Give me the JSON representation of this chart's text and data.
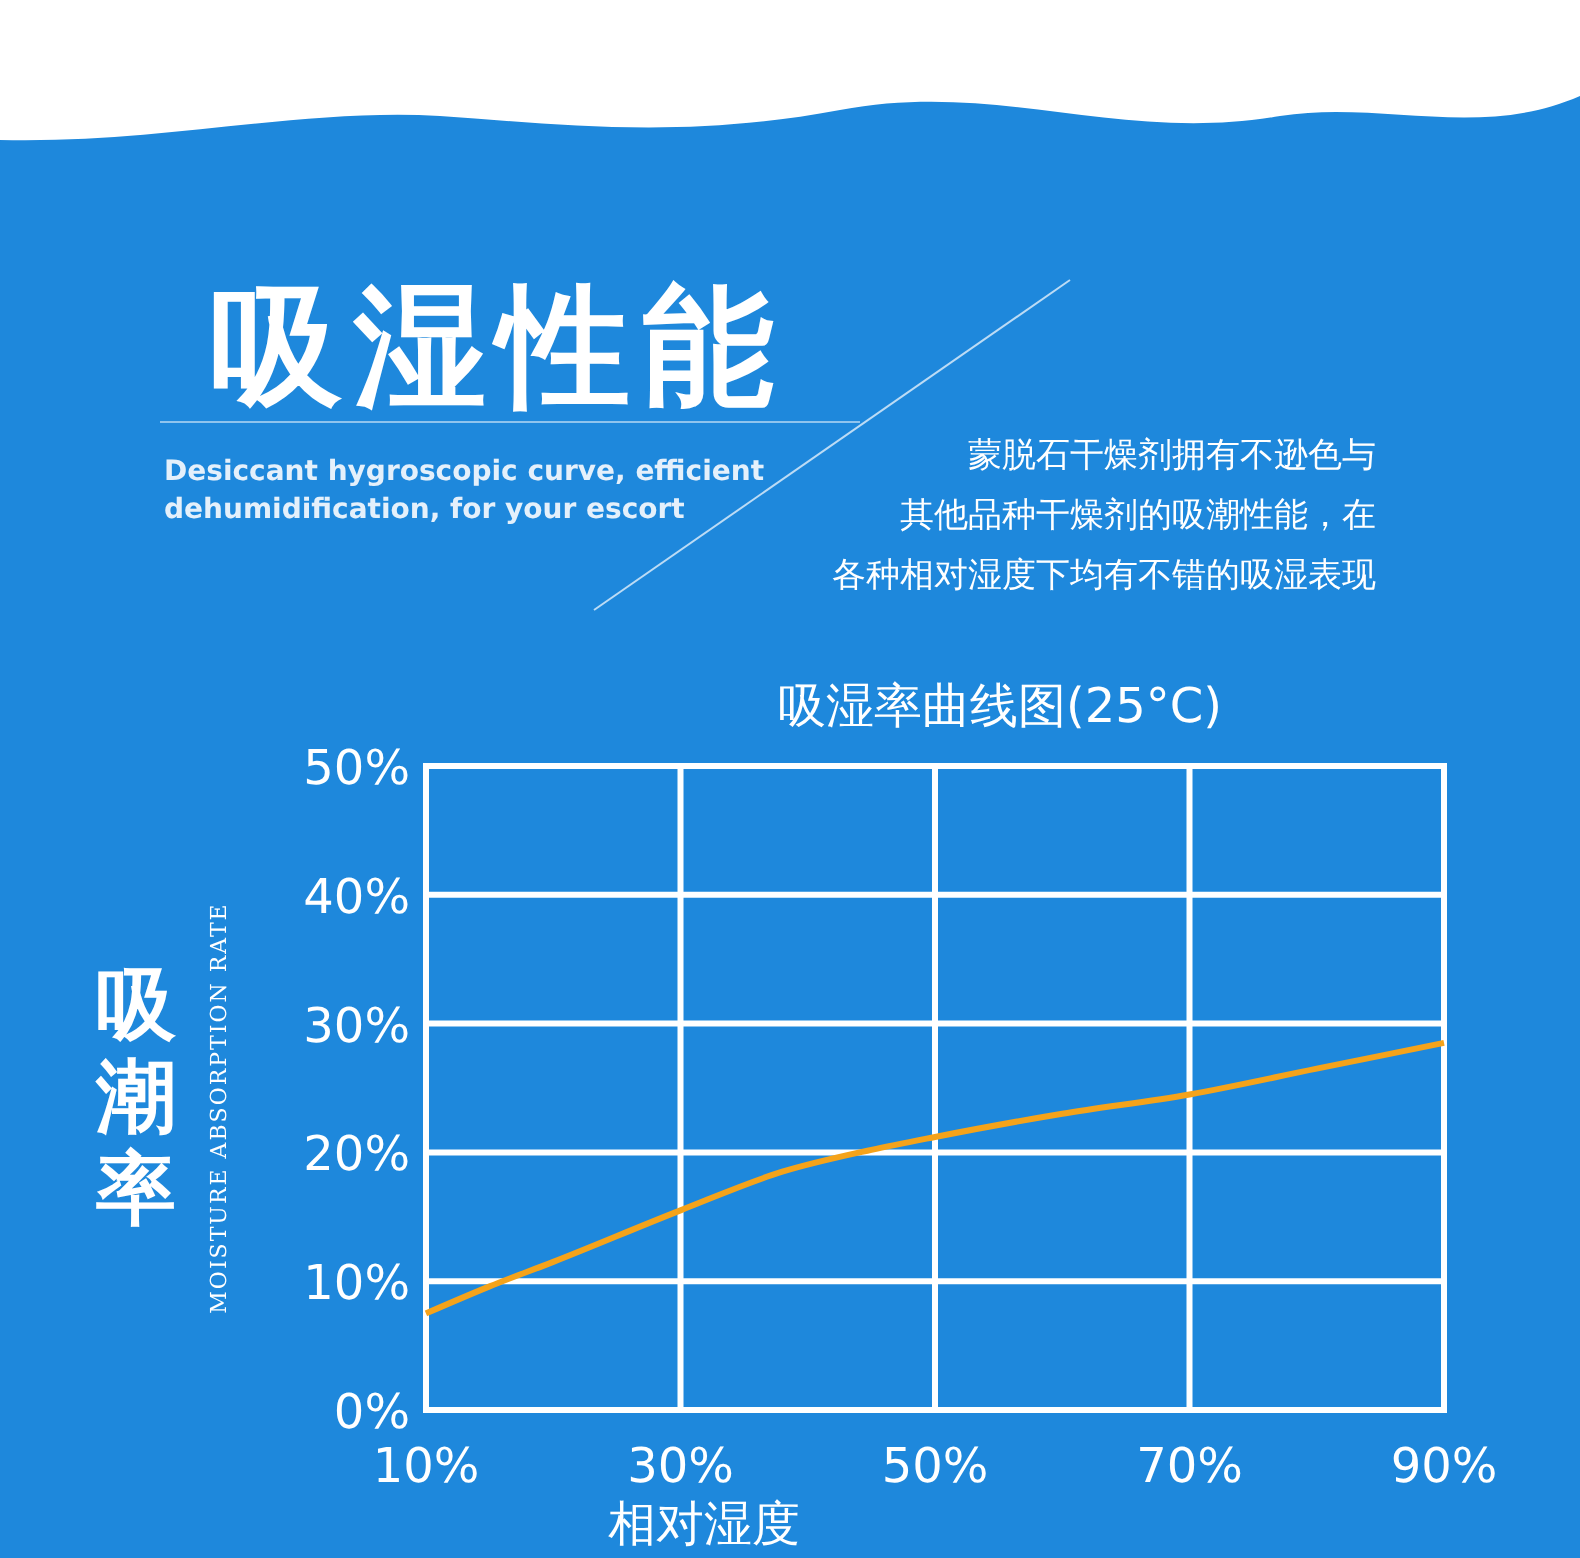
{
  "chart_data": {
    "type": "line",
    "title": "吸湿性能",
    "subtitle": "Desiccant hygroscopic curve, efficient dehumidification, for your escort",
    "annotations": [
      "蒙脱石干燥剂拥有不逊色与",
      "其他品种干燥剂的吸潮性能，在",
      "各种相对湿度下均有不错的吸湿表现",
      "吸湿率曲线图(25°C)",
      "MOISTURE ABSORPTION RATE"
    ],
    "ylabel": "吸潮率",
    "xlabel": "相对湿度",
    "x": [
      10,
      15,
      20,
      30,
      38,
      45,
      50,
      60,
      70,
      80,
      90
    ],
    "series": [
      {
        "color": "#f5a31a",
        "values": [
          7.5,
          9.6,
          11.5,
          15.5,
          18.5,
          20.2,
          21.2,
          23,
          24.5,
          26.5,
          28.5
        ]
      }
    ],
    "xlim": [
      10,
      90
    ],
    "xticks": [
      {
        "value": 10,
        "label": "10%"
      },
      {
        "value": 30,
        "label": "30%"
      },
      {
        "value": 50,
        "label": "50%"
      },
      {
        "value": 70,
        "label": "70%"
      },
      {
        "value": 90,
        "label": "90%"
      }
    ],
    "ylim": [
      0,
      50
    ],
    "yticks": [
      {
        "value": 0,
        "label": "0%"
      },
      {
        "value": 10,
        "label": "10%"
      },
      {
        "value": 20,
        "label": "20%"
      },
      {
        "value": 30,
        "label": "30%"
      },
      {
        "value": 40,
        "label": "40%"
      },
      {
        "value": 50,
        "label": "50%"
      }
    ],
    "grid": true,
    "marker": "none",
    "line_style": "solid"
  }
}
